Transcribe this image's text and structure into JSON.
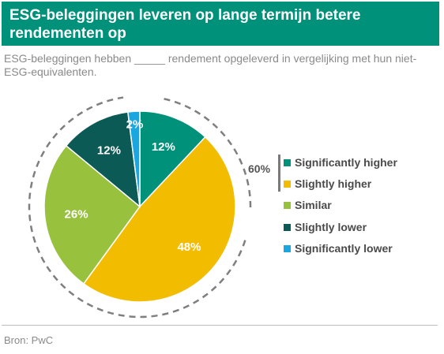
{
  "header": {
    "title": "ESG-beleggingen leveren op lange termijn betere rendementen op",
    "subtitle": "ESG-beleggingen hebben _____ rendement opgeleverd in vergelijking met hun niet-ESG-equivalenten."
  },
  "chart_data": {
    "type": "pie",
    "title": "",
    "categories": [
      "Significantly higher",
      "Slightly higher",
      "Similar",
      "Slightly lower",
      "Significantly lower"
    ],
    "values": [
      12,
      48,
      26,
      12,
      2
    ],
    "value_labels": [
      "12%",
      "48%",
      "26%",
      "12%",
      "2%"
    ],
    "colors": [
      "#00917a",
      "#f2bc00",
      "#98c13d",
      "#0b5a55",
      "#1aa7df"
    ],
    "legend_position": "right",
    "annotation": {
      "label": "60%",
      "covers": [
        "Significantly higher",
        "Slightly higher"
      ]
    }
  },
  "footer": {
    "source": "Bron: PwC"
  }
}
